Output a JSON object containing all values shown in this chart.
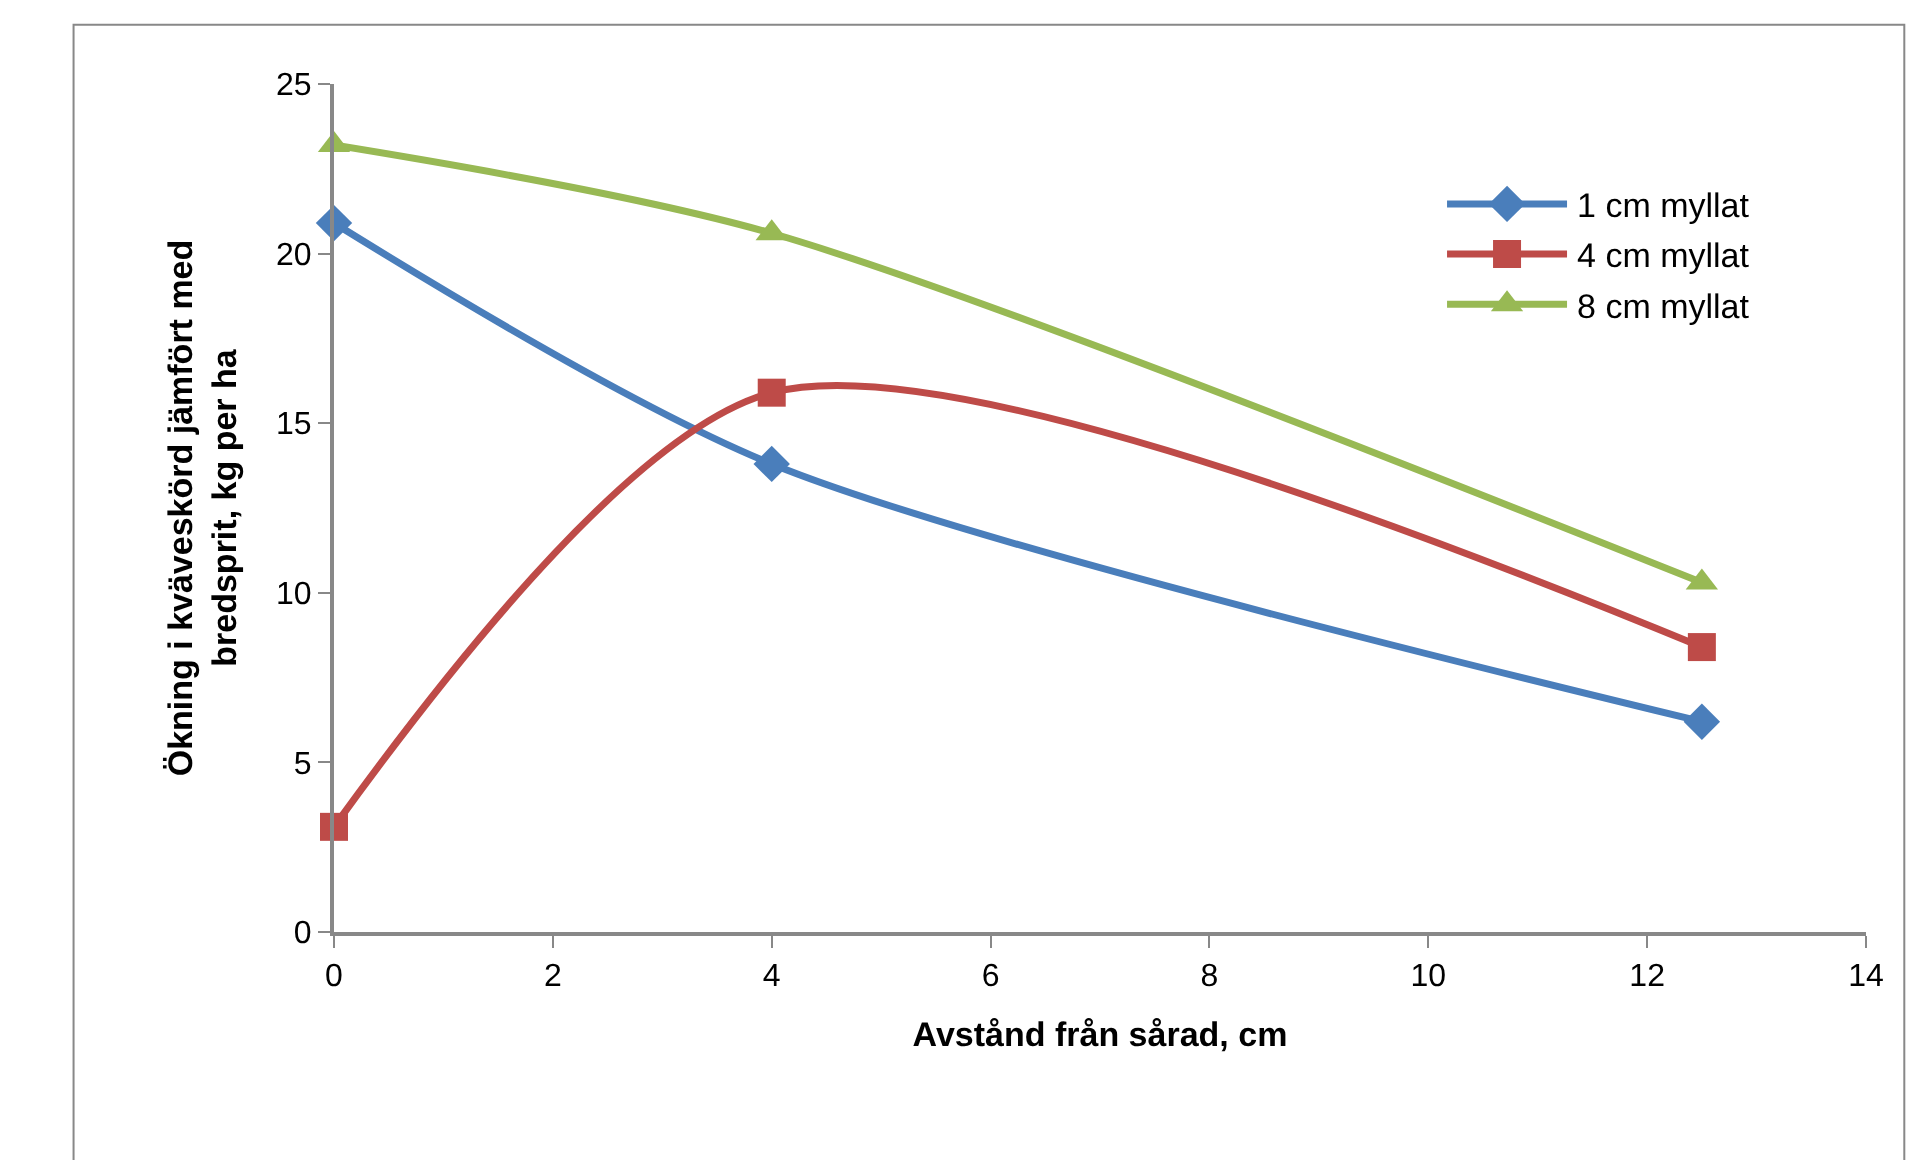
{
  "chart_data": {
    "type": "line",
    "xlabel": "Avstånd från sårad, cm",
    "ylabel": "Ökning i kväveskörd jämfört med bredsprit, kg per ha",
    "x": [
      0,
      4,
      12.5
    ],
    "series": [
      {
        "name": "1 cm myllat",
        "color": "#4a7ebb",
        "marker": "diamond",
        "values": [
          20.9,
          13.8,
          6.2
        ]
      },
      {
        "name": "4 cm myllat",
        "color": "#be4b48",
        "marker": "square",
        "values": [
          3.1,
          15.9,
          8.4
        ]
      },
      {
        "name": "8 cm myllat",
        "color": "#98b954",
        "marker": "triangle",
        "values": [
          23.2,
          20.6,
          10.3
        ]
      }
    ],
    "xlim": [
      0,
      14
    ],
    "xticks": [
      0,
      2,
      4,
      6,
      8,
      10,
      12,
      14
    ],
    "ylim": [
      0,
      25
    ],
    "yticks": [
      0,
      5,
      10,
      15,
      20,
      25
    ],
    "legend": "top right",
    "line_style": "solid"
  }
}
